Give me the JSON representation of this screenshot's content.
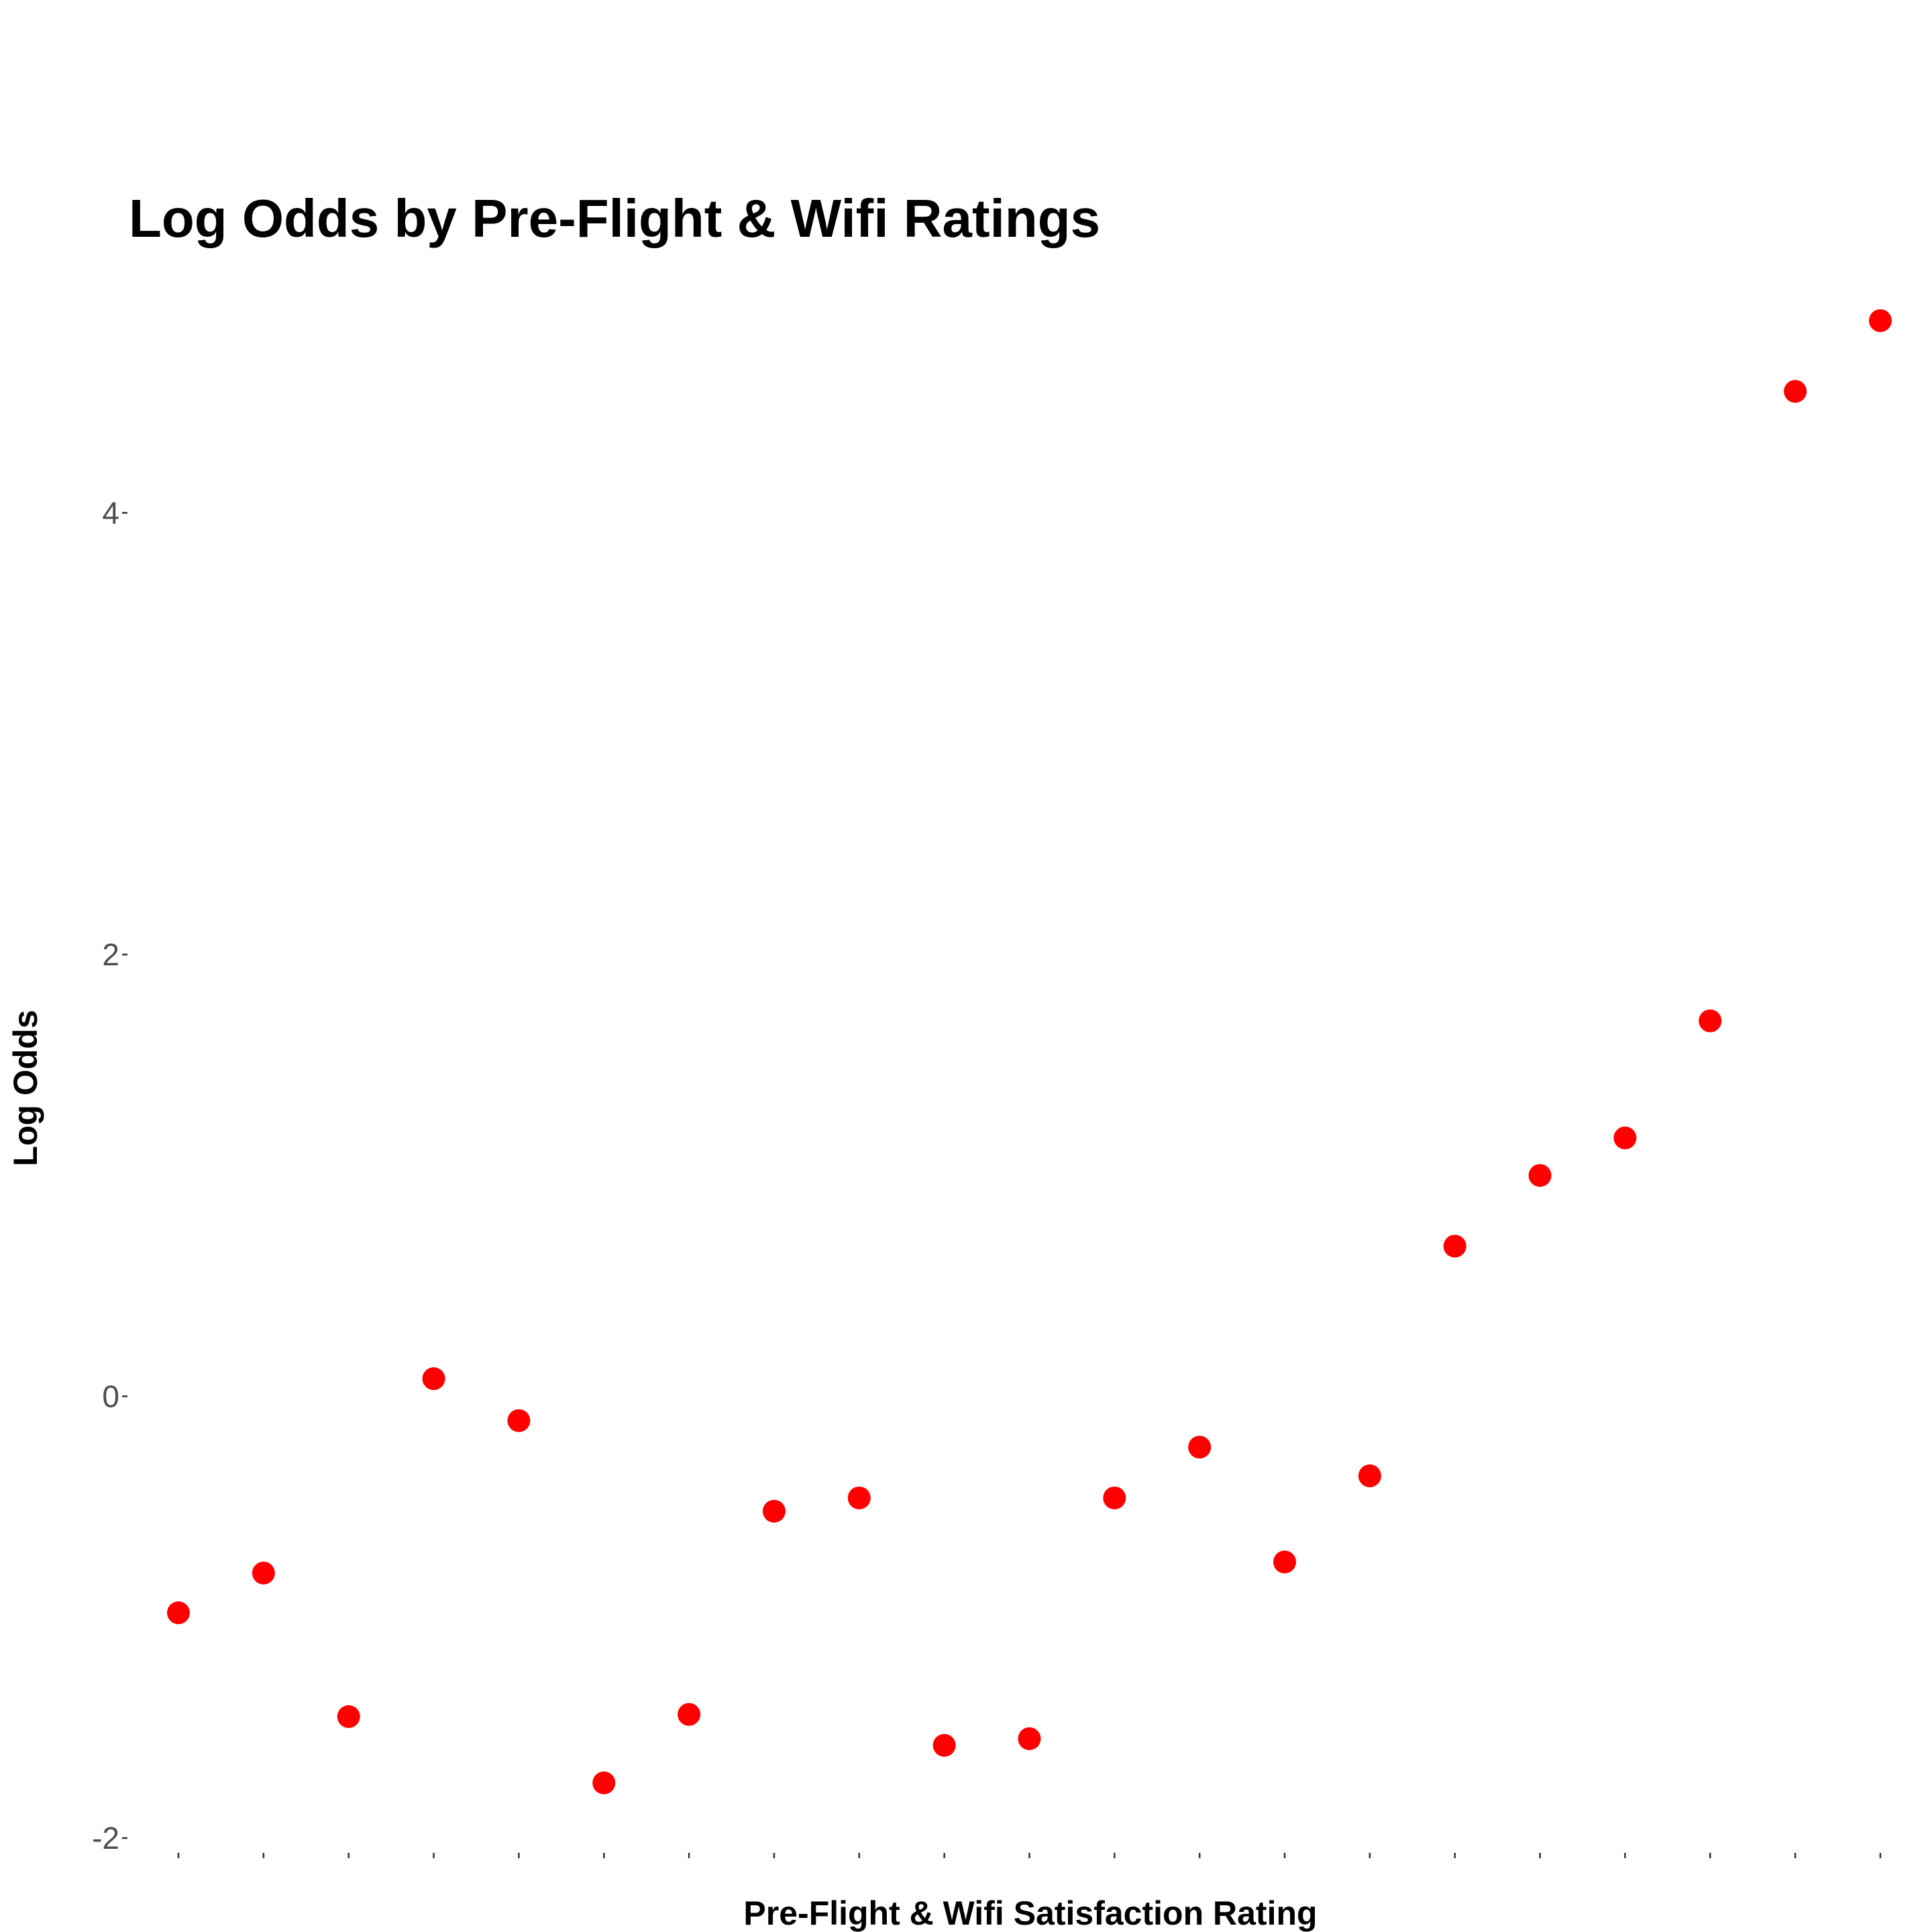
{
  "chart_data": {
    "type": "scatter",
    "title": "Log Odds by Pre-Flight & Wifi Ratings",
    "xlabel": "Pre-Flight & Wifi Satisfaction Rating",
    "ylabel": "Log Odds",
    "x_tick_labels_shown": false,
    "x": [
      1,
      2,
      3,
      4,
      5,
      6,
      7,
      8,
      9,
      10,
      11,
      12,
      13,
      14,
      15,
      16,
      17,
      18,
      19,
      20,
      21
    ],
    "y": [
      -0.98,
      -0.8,
      -1.45,
      0.08,
      -0.11,
      -1.75,
      -1.44,
      -0.52,
      -0.46,
      -1.58,
      -1.55,
      -0.46,
      -0.23,
      -0.75,
      -0.36,
      0.68,
      1.0,
      1.17,
      1.7,
      4.55,
      4.87
    ],
    "yticks": [
      -2,
      0,
      2,
      4
    ],
    "ylim": [
      -2.0,
      4.87
    ],
    "xlim": [
      1,
      21
    ],
    "grid": false,
    "legend": "none",
    "point_color": "#ff0000"
  }
}
